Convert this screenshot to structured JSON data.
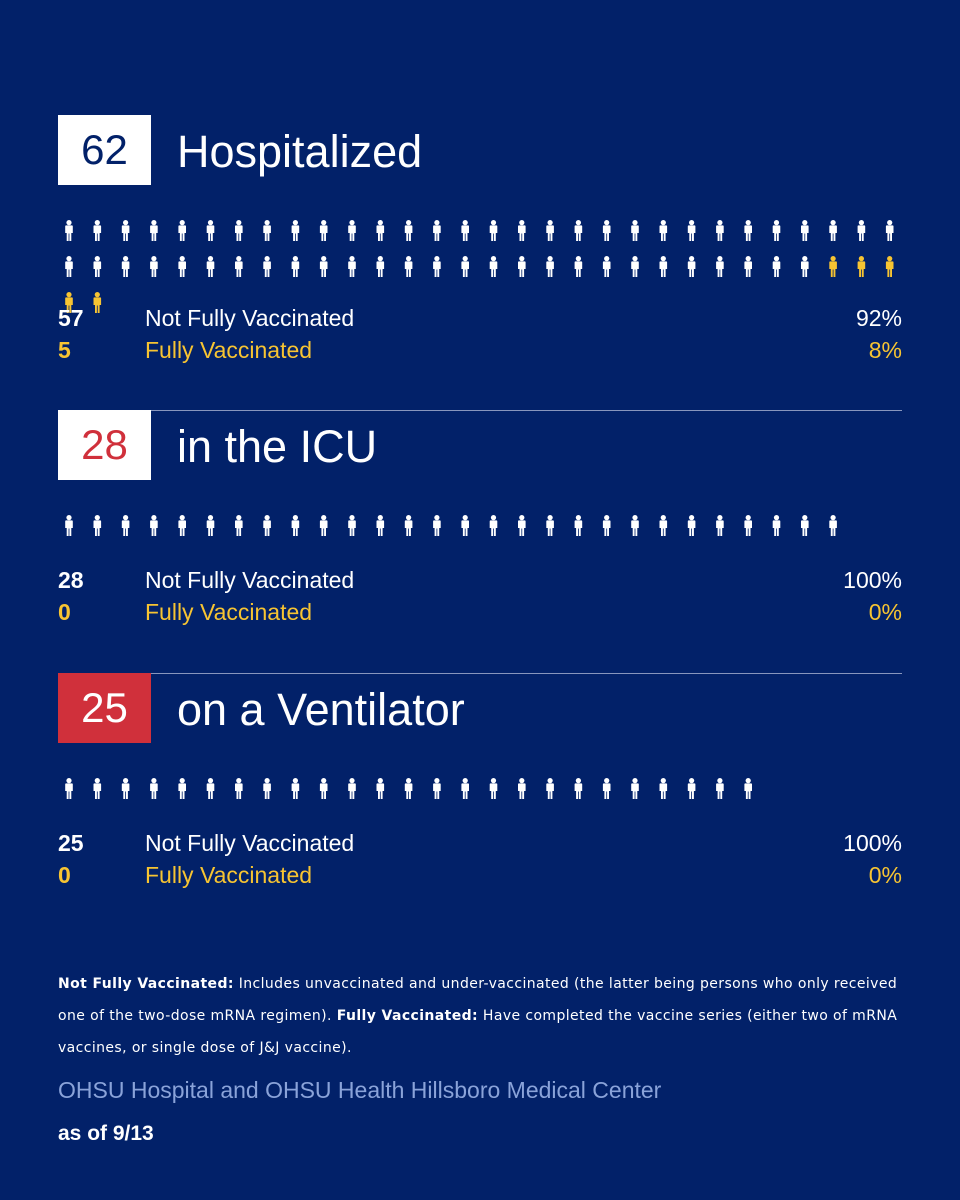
{
  "colors": {
    "background": "#022169",
    "not_fully_vaccinated": "#ffffff",
    "fully_vaccinated": "#f7c432",
    "icu_red": "#d0303b",
    "source_text": "#8aa3d9"
  },
  "chart_data": [
    {
      "type": "pictogram",
      "total": "62",
      "title": "Hospitalized",
      "icon": "person-icon",
      "series": [
        {
          "name": "Not Fully Vaccinated",
          "count": "57",
          "value": 57,
          "percent": "92%"
        },
        {
          "name": "Fully Vaccinated",
          "count": "5",
          "value": 5,
          "percent": "8%"
        }
      ]
    },
    {
      "type": "pictogram",
      "total": "28",
      "title": "in the ICU",
      "icon": "person-icon",
      "series": [
        {
          "name": "Not Fully Vaccinated",
          "count": "28",
          "value": 28,
          "percent": "100%"
        },
        {
          "name": "Fully Vaccinated",
          "count": "0",
          "value": 0,
          "percent": "0%"
        }
      ]
    },
    {
      "type": "pictogram",
      "total": "25",
      "title": "on a Ventilator",
      "icon": "person-icon",
      "series": [
        {
          "name": "Not Fully Vaccinated",
          "count": "25",
          "value": 25,
          "percent": "100%"
        },
        {
          "name": "Fully Vaccinated",
          "count": "0",
          "value": 0,
          "percent": "0%"
        }
      ]
    }
  ],
  "footnote": {
    "nfv_term": "Not Fully Vaccinated:",
    "nfv_def": " Includes unvaccinated and under-vaccinated (the latter being persons who only received one of the two-dose mRNA regimen). ",
    "fv_term": "Fully Vaccinated:",
    "fv_def": " Have completed the vaccine series (either two of mRNA vaccines, or single dose of J&J vaccine)."
  },
  "source": "OHSU Hospital and OHSU Health Hillsboro Medical Center",
  "as_of": "as of 9/13"
}
